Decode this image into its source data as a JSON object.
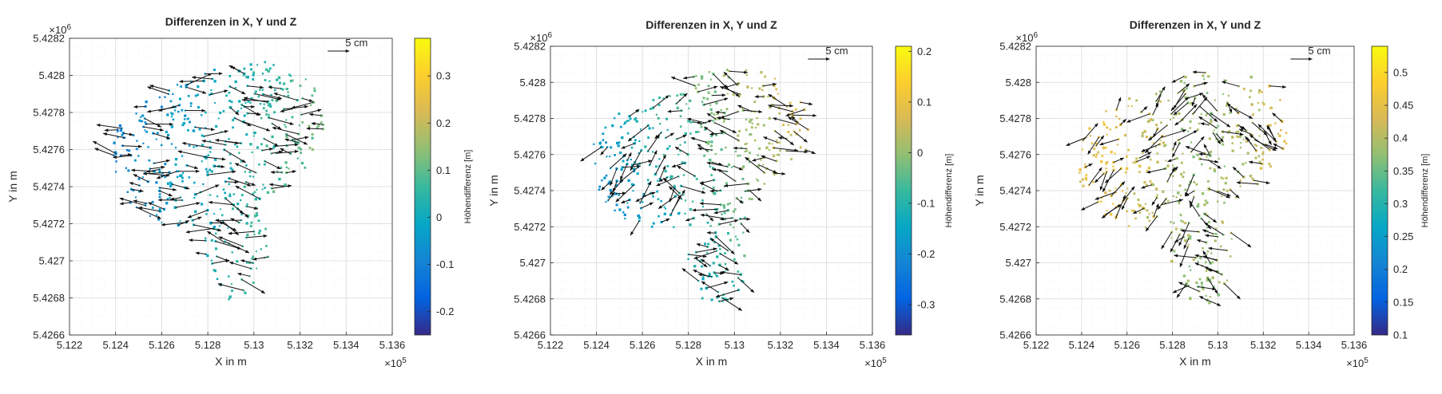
{
  "colors": {
    "parula": [
      "#352a87",
      "#0363e1",
      "#1485d4",
      "#06a7c6",
      "#38b99e",
      "#92bf73",
      "#d9ba56",
      "#fcce2e",
      "#f9fb0e"
    ],
    "axes": "#262626",
    "grid": "#d9d9d9",
    "arrow": "#111111"
  },
  "chart_data": [
    {
      "type": "scatter",
      "title": "Differenzen in X, Y und Z",
      "xlabel": "X in m",
      "ylabel": "Y in m",
      "x_exponent_label": "×10",
      "x_exponent_power": "5",
      "y_exponent_label": "×10",
      "y_exponent_power": "6",
      "xlim": [
        5.122,
        5.136
      ],
      "ylim": [
        5.4266,
        5.4282
      ],
      "xticks": [
        "5.122",
        "5.124",
        "5.126",
        "5.128",
        "5.13",
        "5.132",
        "5.134",
        "5.136"
      ],
      "yticks": [
        "5.4266",
        "5.4268",
        "5.427",
        "5.4272",
        "5.4274",
        "5.4276",
        "5.4278",
        "5.428",
        "5.4282"
      ],
      "grid": "on",
      "scale_label": "5 cm",
      "colorbar": {
        "label": "Höhendifferenz [m]",
        "range": [
          -0.25,
          0.38
        ],
        "ticks": [
          "-0.2",
          "-0.1",
          "0",
          "0.1",
          "0.2",
          "0.3"
        ]
      },
      "seed": 11
    },
    {
      "type": "scatter",
      "title": "Differenzen in X, Y und Z",
      "xlabel": "X in m",
      "ylabel": "Y in m",
      "x_exponent_label": "×10",
      "x_exponent_power": "5",
      "y_exponent_label": "×10",
      "y_exponent_power": "6",
      "xlim": [
        5.122,
        5.136
      ],
      "ylim": [
        5.4266,
        5.4282
      ],
      "xticks": [
        "5.122",
        "5.124",
        "5.126",
        "5.128",
        "5.13",
        "5.132",
        "5.134",
        "5.136"
      ],
      "yticks": [
        "5.4266",
        "5.4268",
        "5.427",
        "5.4272",
        "5.4274",
        "5.4276",
        "5.4278",
        "5.428",
        "5.4282"
      ],
      "grid": "on",
      "scale_label": "5 cm",
      "colorbar": {
        "label": "Höhendifferenz [m]",
        "range": [
          -0.36,
          0.21
        ],
        "ticks": [
          "-0.3",
          "-0.2",
          "-0.1",
          "0",
          "0.1",
          "0.2"
        ]
      },
      "seed": 23
    },
    {
      "type": "scatter",
      "title": "Differenzen in X, Y und Z",
      "xlabel": "X in m",
      "ylabel": "Y in m",
      "x_exponent_label": "×10",
      "x_exponent_power": "5",
      "y_exponent_label": "×10",
      "y_exponent_power": "6",
      "xlim": [
        5.122,
        5.136
      ],
      "ylim": [
        5.4266,
        5.4282
      ],
      "xticks": [
        "5.122",
        "5.124",
        "5.126",
        "5.128",
        "5.13",
        "5.132",
        "5.134",
        "5.136"
      ],
      "yticks": [
        "5.4266",
        "5.4268",
        "5.427",
        "5.4272",
        "5.4274",
        "5.4276",
        "5.4278",
        "5.428",
        "5.4282"
      ],
      "grid": "on",
      "scale_label": "5 cm",
      "colorbar": {
        "label": "Höhendifferenz [m]",
        "range": [
          0.1,
          0.54
        ],
        "ticks": [
          "0.1",
          "0.15",
          "0.2",
          "0.25",
          "0.3",
          "0.35",
          "0.4",
          "0.45",
          "0.5"
        ]
      },
      "seed": 37
    }
  ]
}
